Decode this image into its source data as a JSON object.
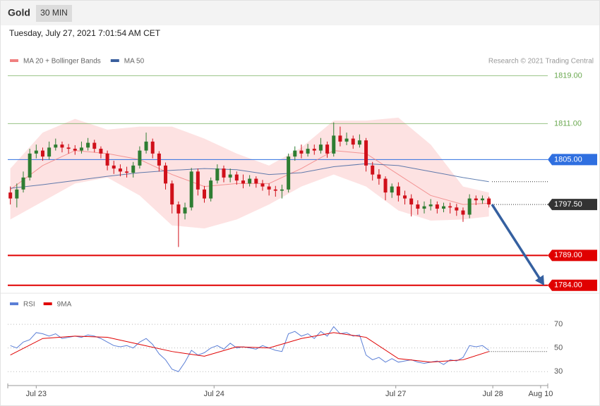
{
  "header": {
    "title": "Gold",
    "timeframe": "30 MIN",
    "timestamp": "Tuesday, July 27, 2021 7:01:54 AM CET"
  },
  "chart_data": [
    {
      "type": "candlestick",
      "credit": "Research © 2021 Trading Central",
      "xlim": [
        -0.4,
        83.1
      ],
      "ylim": [
        1782.8,
        1823.4
      ],
      "up_color": "#2e7d32",
      "down_color": "#d0101a",
      "candles": {
        "open": [
          1799.5,
          1798.5,
          1800,
          1802,
          1806,
          1806.5,
          1805.5,
          1807,
          1807.5,
          1807,
          1806.8,
          1806.5,
          1807,
          1807.8,
          1806.8,
          1806,
          1804,
          1803.5,
          1803,
          1802.8,
          1804,
          1806.5,
          1808,
          1806,
          1804,
          1801,
          1797.5,
          1796,
          1797,
          1803,
          1800,
          1798.5,
          1801.5,
          1803.5,
          1802,
          1802.5,
          1801.5,
          1801,
          1801.8,
          1801,
          1800.5,
          1800,
          1799.8,
          1800,
          1805.5,
          1806.5,
          1806,
          1806.8,
          1806.5,
          1807.5,
          1806,
          1809,
          1808,
          1808.5,
          1807.5,
          1808.2,
          1804,
          1802.5,
          1801.8,
          1799.5,
          1800.5,
          1799,
          1798.5,
          1797.5,
          1796.8,
          1797.2,
          1797.5,
          1796.8,
          1797.2,
          1797,
          1796.5,
          1795.8,
          1798.5,
          1798.2,
          1798.5
        ],
        "high": [
          1800.5,
          1801,
          1803,
          1806.8,
          1807.5,
          1807,
          1808,
          1808.5,
          1808,
          1807.6,
          1807.4,
          1808,
          1808.6,
          1808.3,
          1807.2,
          1806.5,
          1804.8,
          1804.2,
          1803.8,
          1804.6,
          1807.2,
          1809.5,
          1808.5,
          1806.4,
          1804.5,
          1801.5,
          1798,
          1797.8,
          1803.6,
          1803.5,
          1800.6,
          1802,
          1804.2,
          1804,
          1803.5,
          1803,
          1802.5,
          1802.4,
          1802.2,
          1801.6,
          1801,
          1800.6,
          1800.8,
          1806,
          1807.2,
          1807.5,
          1807.6,
          1807.5,
          1808.6,
          1808,
          1811.2,
          1810.5,
          1809.5,
          1809,
          1809.2,
          1808.6,
          1804.6,
          1803.4,
          1802.2,
          1801,
          1801.2,
          1799.8,
          1799.2,
          1798.2,
          1798,
          1798.4,
          1798,
          1797.8,
          1797.8,
          1797.6,
          1797,
          1799.2,
          1799,
          1799,
          1798.8
        ],
        "low": [
          1797.5,
          1797,
          1799.5,
          1801.5,
          1805.2,
          1804.8,
          1805,
          1806.5,
          1806.2,
          1806,
          1805.8,
          1806,
          1806.5,
          1806.2,
          1805.2,
          1803.2,
          1802.6,
          1802.2,
          1802,
          1802,
          1803.5,
          1806,
          1805.2,
          1803,
          1800,
          1796,
          1790.4,
          1795,
          1796.5,
          1799,
          1797.8,
          1798,
          1801,
          1801.2,
          1801.2,
          1800.8,
          1800.2,
          1800.5,
          1800.3,
          1799.8,
          1799,
          1798.8,
          1798.5,
          1799.5,
          1804.8,
          1805.2,
          1805.5,
          1805.8,
          1806,
          1805.3,
          1805.5,
          1807.2,
          1807.4,
          1806.8,
          1807,
          1803,
          1801.5,
          1800.8,
          1798.2,
          1798.6,
          1798,
          1797.5,
          1795.5,
          1795.8,
          1796,
          1796.5,
          1796,
          1796.2,
          1796,
          1795.6,
          1794.6,
          1795.2,
          1797.4,
          1797.6,
          1797
        ],
        "close": [
          1798.5,
          1800,
          1802,
          1806,
          1806.5,
          1805.5,
          1807,
          1807.5,
          1807,
          1806.8,
          1806.5,
          1807,
          1807.8,
          1806.8,
          1806,
          1804,
          1803.5,
          1803,
          1802.8,
          1804,
          1806.5,
          1808,
          1806,
          1804,
          1801,
          1797.5,
          1796,
          1797,
          1803,
          1800,
          1798.5,
          1801.5,
          1803.5,
          1802,
          1802.5,
          1801.5,
          1801,
          1801.8,
          1801,
          1800.5,
          1800,
          1799.8,
          1800,
          1805.5,
          1806.5,
          1806,
          1806.8,
          1806.5,
          1807.5,
          1806,
          1809,
          1808,
          1808.5,
          1807.5,
          1808.2,
          1804,
          1802.5,
          1801.8,
          1799.5,
          1800.5,
          1799,
          1798.5,
          1797.5,
          1796.8,
          1797.2,
          1797.5,
          1796.8,
          1797.2,
          1797,
          1796.5,
          1795.8,
          1798.5,
          1798.2,
          1798.5,
          1797.5
        ]
      },
      "series": [
        {
          "name": "MA 20 + Bollinger Bands",
          "color": "#f08080",
          "band_color": "#fde2e2",
          "x": [
            0,
            5,
            10,
            15,
            20,
            25,
            30,
            35,
            40,
            45,
            50,
            55,
            60,
            65,
            70,
            74
          ],
          "values": [
            1800,
            1804,
            1806.5,
            1806,
            1805,
            1802.5,
            1800.5,
            1801,
            1801,
            1803.5,
            1806.5,
            1806,
            1802.5,
            1799,
            1797.5,
            1797.7
          ],
          "upper": [
            1803.5,
            1809.5,
            1811.8,
            1810,
            1810.5,
            1810.5,
            1808.5,
            1806,
            1804,
            1807,
            1811.5,
            1811.5,
            1812,
            1807.5,
            1800.5,
            1799.5
          ],
          "lower": [
            1795,
            1798,
            1801,
            1802,
            1799,
            1794,
            1793.5,
            1795,
            1797.5,
            1800.5,
            1802.5,
            1800.5,
            1796.5,
            1794.8,
            1795,
            1795.5
          ]
        },
        {
          "name": "MA 50",
          "color": "#3a5f9e",
          "x": [
            0,
            5,
            10,
            15,
            20,
            25,
            30,
            35,
            40,
            45,
            50,
            55,
            60,
            65,
            70,
            74
          ],
          "values": [
            1800.2,
            1800.8,
            1801.5,
            1802.2,
            1802.8,
            1803.2,
            1803.5,
            1803.3,
            1802.5,
            1802.8,
            1803.8,
            1804.3,
            1804,
            1803,
            1802,
            1801.3
          ]
        }
      ],
      "levels": [
        {
          "value": 1819,
          "label": "1819.00",
          "color": "#6aa84f",
          "filled": false,
          "dotted": false
        },
        {
          "value": 1811,
          "label": "1811.00",
          "color": "#6aa84f",
          "filled": false,
          "dotted": false
        },
        {
          "value": 1805,
          "label": "1805.00",
          "color": "#2f6fe0",
          "filled": true,
          "dotted": false
        },
        {
          "value": 1797.5,
          "label": "1797.50",
          "color": "#333333",
          "filled": true,
          "dotted": true
        },
        {
          "value": 1789,
          "label": "1789.00",
          "color": "#e00000",
          "filled": true,
          "dotted": false
        },
        {
          "value": 1784,
          "label": "1784.00",
          "color": "#e00000",
          "filled": true,
          "dotted": false
        }
      ]
    },
    {
      "type": "line",
      "xlim": [
        -0.4,
        83.1
      ],
      "ylim": [
        20,
        79
      ],
      "yticks": [
        30,
        50,
        70
      ],
      "xticks": [
        {
          "value": 4,
          "label": "Jul 23"
        },
        {
          "value": 31.5,
          "label": "Jul 24"
        },
        {
          "value": 59.6,
          "label": "Jul 27"
        },
        {
          "value": 74.6,
          "label": "Jul 28"
        },
        {
          "value": 82,
          "label": "Aug 10"
        }
      ],
      "series": [
        {
          "name": "RSI",
          "color": "#5b7fd6",
          "values": [
            52,
            50,
            55,
            57,
            63,
            62,
            60,
            62,
            58,
            59,
            60,
            59,
            61,
            60,
            58,
            55,
            52,
            51,
            52,
            50,
            55,
            58,
            53,
            45,
            40,
            32,
            30,
            38,
            48,
            44,
            46,
            50,
            52,
            49,
            54,
            50,
            51,
            50,
            49,
            52,
            50,
            48,
            47,
            62,
            64,
            60,
            62,
            58,
            64,
            60,
            68,
            62,
            63,
            60,
            61,
            44,
            40,
            42,
            38,
            41,
            38,
            39,
            40,
            38,
            37,
            38,
            39,
            36,
            40,
            39,
            42,
            52,
            51,
            52,
            48
          ]
        },
        {
          "name": "9MA",
          "color": "#e00000",
          "x": [
            0,
            5,
            10,
            15,
            20,
            25,
            30,
            35,
            40,
            45,
            50,
            55,
            60,
            65,
            70,
            74
          ],
          "values": [
            44,
            58,
            60,
            59,
            53,
            47,
            43,
            51,
            50,
            58,
            63,
            59,
            41,
            38,
            40,
            47
          ]
        }
      ]
    }
  ]
}
